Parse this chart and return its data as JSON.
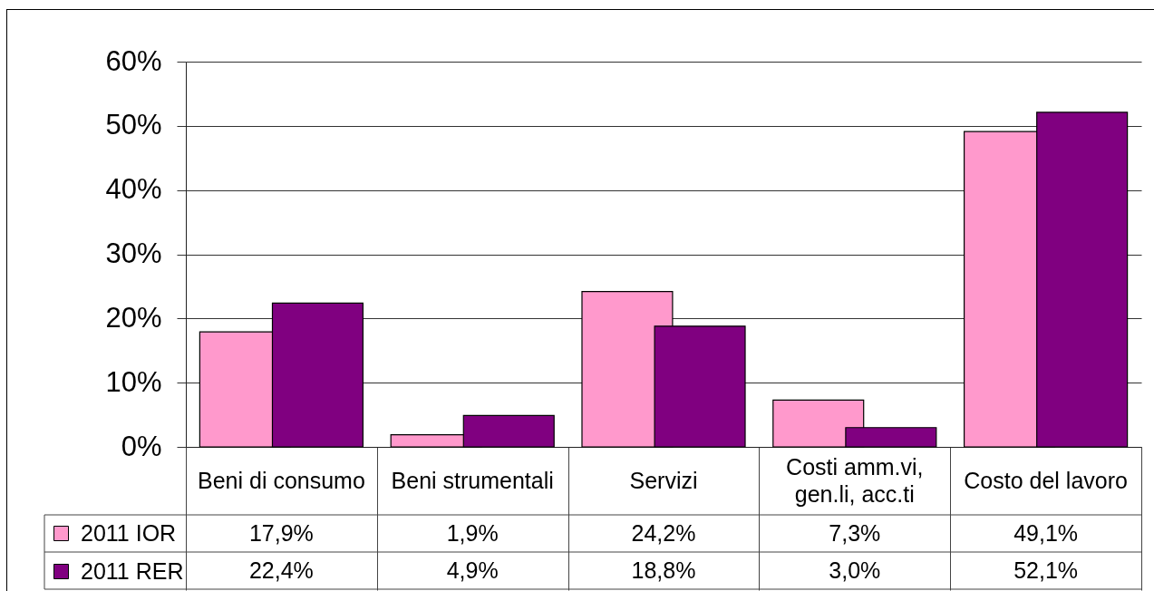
{
  "chart_data": {
    "type": "bar",
    "categories": [
      "Beni di consumo",
      "Beni strumentali",
      "Servizi",
      "Costi amm.vi, gen.li, acc.ti",
      "Costo del lavoro"
    ],
    "series": [
      {
        "name": "2011 IOR",
        "color": "#ff99cc",
        "values": [
          17.9,
          1.9,
          24.2,
          7.3,
          49.1
        ],
        "value_labels": [
          "17,9%",
          "1,9%",
          "24,2%",
          "7,3%",
          "49,1%"
        ]
      },
      {
        "name": "2011 RER",
        "color": "#800080",
        "values": [
          22.4,
          4.9,
          18.8,
          3.0,
          52.1
        ],
        "value_labels": [
          "22,4%",
          "4,9%",
          "18,8%",
          "3,0%",
          "52,1%"
        ]
      }
    ],
    "ylim": [
      0,
      60
    ],
    "yticks": [
      {
        "value": 0,
        "label": "0%"
      },
      {
        "value": 10,
        "label": "10%"
      },
      {
        "value": 20,
        "label": "20%"
      },
      {
        "value": 30,
        "label": "30%"
      },
      {
        "value": 40,
        "label": "40%"
      },
      {
        "value": 50,
        "label": "50%"
      },
      {
        "value": 60,
        "label": "60%"
      }
    ],
    "grid": "y",
    "legend": "bottom left"
  }
}
